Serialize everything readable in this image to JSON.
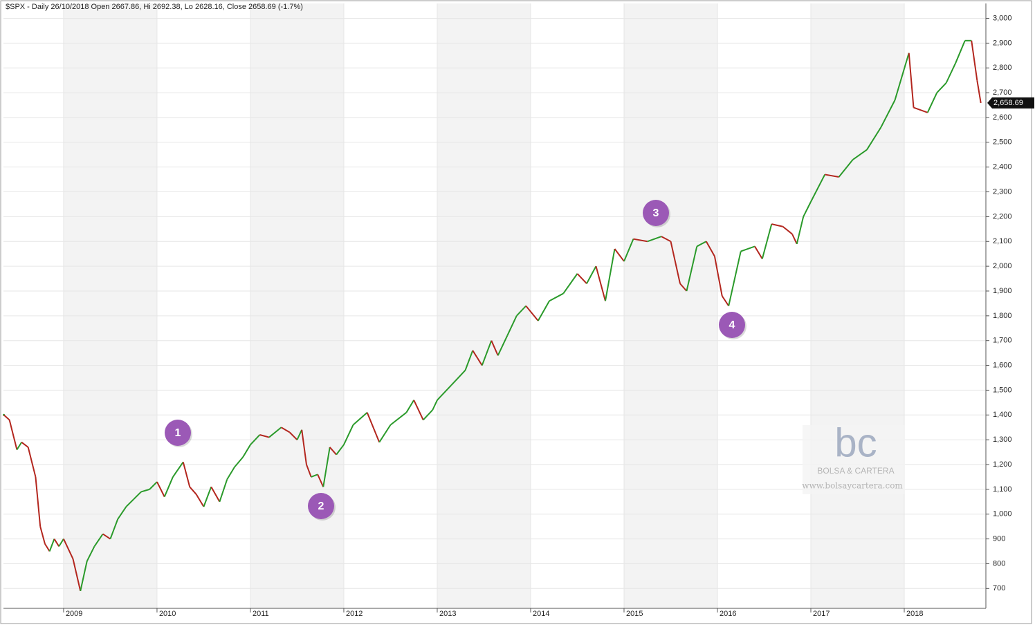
{
  "chart_data": {
    "type": "line",
    "title": "$SPX - Daily 26/10/2018 Open 2667.86, Hi 2692.38, Lo 2628.16, Close 2658.69 (-1.7%)",
    "up_color": "#2a9a2a",
    "down_color": "#b3261e",
    "x": [
      2008.36,
      2008.42,
      2008.5,
      2008.55,
      2008.62,
      2008.7,
      2008.75,
      2008.8,
      2008.85,
      2008.9,
      2008.95,
      2009.0,
      2009.1,
      2009.18,
      2009.25,
      2009.33,
      2009.42,
      2009.5,
      2009.58,
      2009.67,
      2009.75,
      2009.83,
      2009.92,
      2010.0,
      2010.08,
      2010.17,
      2010.28,
      2010.35,
      2010.42,
      2010.5,
      2010.58,
      2010.67,
      2010.75,
      2010.83,
      2010.92,
      2011.0,
      2011.1,
      2011.2,
      2011.33,
      2011.42,
      2011.5,
      2011.55,
      2011.6,
      2011.65,
      2011.72,
      2011.78,
      2011.85,
      2011.92,
      2012.0,
      2012.1,
      2012.25,
      2012.38,
      2012.5,
      2012.67,
      2012.75,
      2012.85,
      2012.95,
      2013.0,
      2013.15,
      2013.3,
      2013.38,
      2013.48,
      2013.58,
      2013.65,
      2013.75,
      2013.85,
      2013.95,
      2014.08,
      2014.2,
      2014.35,
      2014.5,
      2014.6,
      2014.7,
      2014.8,
      2014.9,
      2015.0,
      2015.1,
      2015.25,
      2015.4,
      2015.5,
      2015.6,
      2015.67,
      2015.78,
      2015.88,
      2015.97,
      2016.05,
      2016.12,
      2016.25,
      2016.4,
      2016.48,
      2016.58,
      2016.7,
      2016.8,
      2016.85,
      2016.92,
      2017.0,
      2017.15,
      2017.3,
      2017.45,
      2017.6,
      2017.75,
      2017.9,
      2018.05,
      2018.1,
      2018.25,
      2018.35,
      2018.45,
      2018.55,
      2018.65,
      2018.72,
      2018.78,
      2018.82
    ],
    "values": [
      1400,
      1380,
      1260,
      1290,
      1270,
      1150,
      950,
      880,
      850,
      900,
      870,
      900,
      820,
      690,
      810,
      870,
      920,
      900,
      980,
      1030,
      1060,
      1090,
      1100,
      1130,
      1070,
      1150,
      1210,
      1110,
      1080,
      1030,
      1110,
      1050,
      1140,
      1190,
      1230,
      1280,
      1320,
      1310,
      1350,
      1330,
      1300,
      1340,
      1200,
      1150,
      1160,
      1110,
      1270,
      1240,
      1280,
      1360,
      1410,
      1290,
      1360,
      1410,
      1460,
      1380,
      1420,
      1460,
      1520,
      1580,
      1660,
      1600,
      1700,
      1640,
      1720,
      1800,
      1840,
      1780,
      1860,
      1890,
      1970,
      1930,
      2000,
      1860,
      2070,
      2020,
      2110,
      2100,
      2120,
      2100,
      1930,
      1900,
      2080,
      2100,
      2040,
      1880,
      1840,
      2060,
      2080,
      2030,
      2170,
      2160,
      2130,
      2090,
      2200,
      2260,
      2370,
      2360,
      2430,
      2470,
      2560,
      2670,
      2860,
      2640,
      2620,
      2700,
      2740,
      2820,
      2910,
      2910,
      2750,
      2658.69
    ],
    "last_value_label": "2,658.69",
    "xlim": [
      2008.356,
      2018.874
    ],
    "xticks": [
      2009,
      2010,
      2011,
      2012,
      2013,
      2014,
      2015,
      2016,
      2017,
      2018
    ],
    "ylim": [
      620,
      3060
    ],
    "yticks": [
      700,
      800,
      900,
      {
        "value": 1000,
        "label": "1,000"
      },
      {
        "value": 1100,
        "label": "1,100"
      },
      {
        "value": 1200,
        "label": "1,200"
      },
      {
        "value": 1300,
        "label": "1,300"
      },
      {
        "value": 1400,
        "label": "1,400"
      },
      {
        "value": 1500,
        "label": "1,500"
      },
      {
        "value": 1600,
        "label": "1,600"
      },
      {
        "value": 1700,
        "label": "1,700"
      },
      {
        "value": 1800,
        "label": "1,800"
      },
      {
        "value": 1900,
        "label": "1,900"
      },
      {
        "value": 2000,
        "label": "2,000"
      },
      {
        "value": 2100,
        "label": "2,100"
      },
      {
        "value": 2200,
        "label": "2,200"
      },
      {
        "value": 2300,
        "label": "2,300"
      },
      {
        "value": 2400,
        "label": "2,400"
      },
      {
        "value": 2500,
        "label": "2,500"
      },
      {
        "value": 2600,
        "label": "2,600"
      },
      {
        "value": 2700,
        "label": "2,700"
      },
      {
        "value": 2800,
        "label": "2,800"
      },
      {
        "value": 2900,
        "label": "2,900"
      },
      {
        "value": 3000,
        "label": "3,000"
      }
    ],
    "grid": true,
    "annotations": [
      "1",
      "2",
      "3",
      "4"
    ],
    "watermark": {
      "logo": "bc",
      "name": "BOLSA & CARTERA",
      "url": "www.bolsaycartera.com"
    }
  }
}
